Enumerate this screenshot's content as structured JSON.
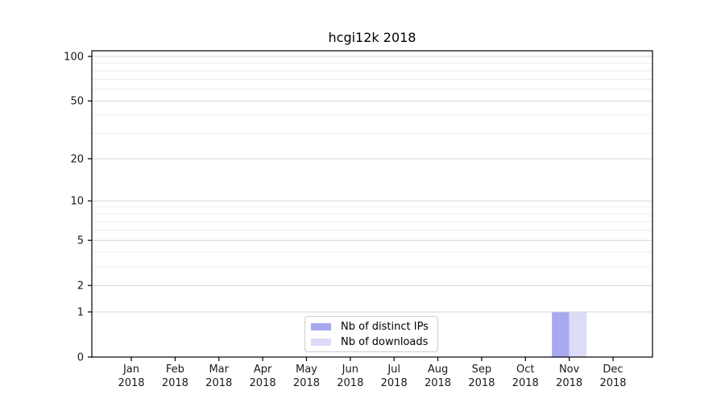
{
  "title": "hcgi12k 2018",
  "chart_data": {
    "type": "bar",
    "title": "hcgi12k 2018",
    "categories": [
      "Jan",
      "Feb",
      "Mar",
      "Apr",
      "May",
      "Jun",
      "Jul",
      "Aug",
      "Sep",
      "Oct",
      "Nov",
      "Dec"
    ],
    "x_year_label": "2018",
    "series": [
      {
        "name": "Nb of distinct IPs",
        "color": "#a8a8ef",
        "values": [
          0,
          0,
          0,
          0,
          0,
          0,
          0,
          0,
          0,
          0,
          1,
          0
        ]
      },
      {
        "name": "Nb of downloads",
        "color": "#dcdcf8",
        "values": [
          0,
          0,
          0,
          0,
          0,
          0,
          0,
          0,
          0,
          0,
          1,
          0
        ]
      }
    ],
    "xlabel": "",
    "ylabel": "",
    "y_scale": "log10(1+y)",
    "ylim": [
      0,
      110
    ],
    "y_major_ticks": [
      0,
      1,
      2,
      5,
      10,
      20,
      50,
      100
    ],
    "y_minor_gridlines": [
      3,
      4,
      6,
      7,
      8,
      9,
      30,
      40,
      60,
      70,
      80,
      90
    ],
    "grid": "horizontal-on",
    "legend_position": "lower-center",
    "colors": {
      "spine": "#000000",
      "tick_text": "#1a1a1a",
      "grid_major": "#d4d4d4",
      "grid_minor": "#ececec",
      "legend_border": "#cccccc",
      "background": "#ffffff"
    }
  }
}
